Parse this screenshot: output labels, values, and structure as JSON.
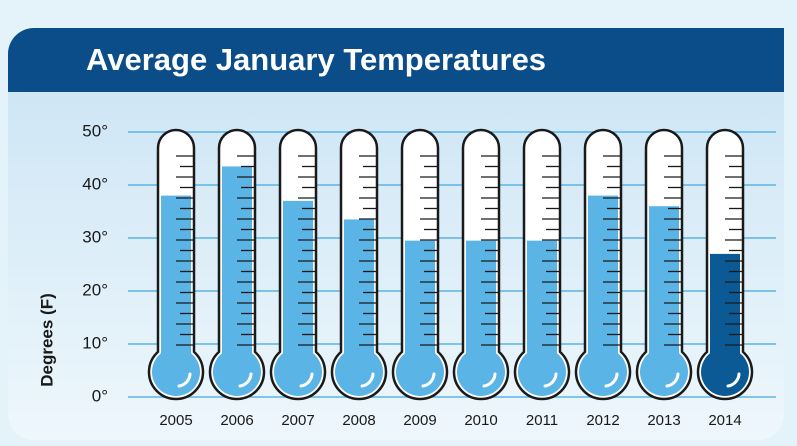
{
  "chart_data": {
    "type": "bar",
    "title": "Average January Temperatures",
    "y_label": "Degrees (F)",
    "categories": [
      "2005",
      "2006",
      "2007",
      "2008",
      "2009",
      "2010",
      "2011",
      "2012",
      "2013",
      "2014"
    ],
    "values": [
      38,
      43.5,
      37,
      33.5,
      29.5,
      29.5,
      29.5,
      38,
      36,
      27
    ],
    "colors": [
      "#5ab4e6",
      "#5ab4e6",
      "#5ab4e6",
      "#5ab4e6",
      "#5ab4e6",
      "#5ab4e6",
      "#5ab4e6",
      "#5ab4e6",
      "#5ab4e6",
      "#0b5a96"
    ],
    "ylim": [
      0,
      50
    ],
    "yticks": [
      {
        "value": 0,
        "label": "0°"
      },
      {
        "value": 10,
        "label": "10°"
      },
      {
        "value": 20,
        "label": "20°"
      },
      {
        "value": 30,
        "label": "30°"
      },
      {
        "value": 40,
        "label": "40°"
      },
      {
        "value": 50,
        "label": "50°"
      }
    ],
    "grid": true
  }
}
